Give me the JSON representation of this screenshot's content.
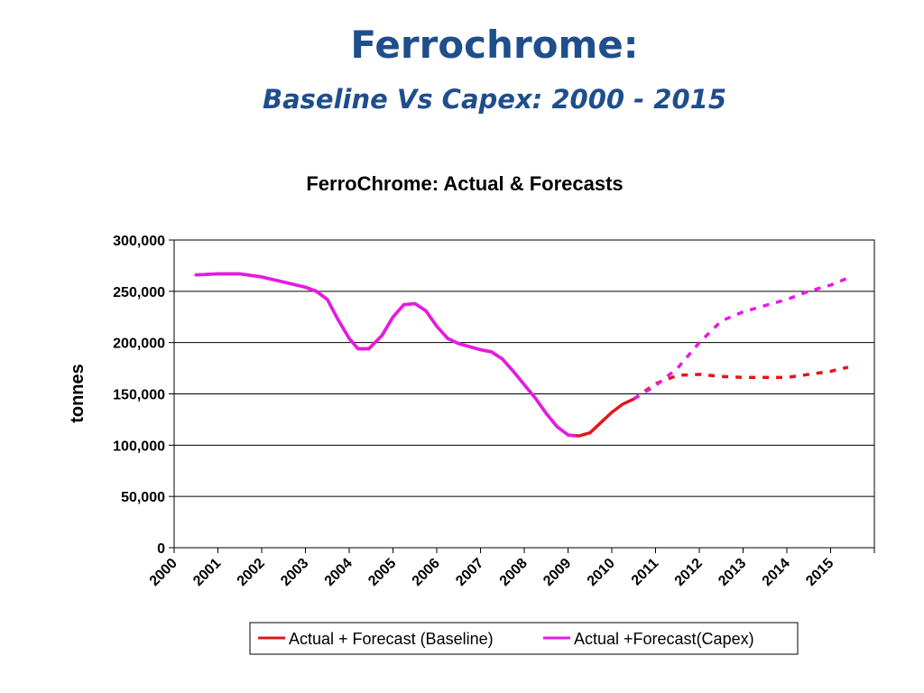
{
  "slide": {
    "title": "Ferrochrome:",
    "subtitle": "Baseline Vs Capex: 2000 - 2015"
  },
  "chart_data": {
    "type": "line",
    "title": "FerroChrome: Actual & Forecasts",
    "xlabel": "",
    "ylabel": "tonnes",
    "ylim": [
      0,
      300000
    ],
    "yticks": [
      "0",
      "50,000",
      "100,000",
      "150,000",
      "200,000",
      "250,000",
      "300,000"
    ],
    "categories": [
      "2000",
      "2001",
      "2002",
      "2003",
      "2004",
      "2005",
      "2006",
      "2007",
      "2008",
      "2009",
      "2010",
      "2011",
      "2012",
      "2013",
      "2014",
      "2015"
    ],
    "grid": true,
    "legend_position": "bottom",
    "series": [
      {
        "name": "Actual + Forecast (Baseline)",
        "color": "#E3151A",
        "actual": [
          [
            2000.5,
            266000
          ],
          [
            2001.0,
            267000
          ],
          [
            2001.5,
            267000
          ],
          [
            2002.0,
            264000
          ],
          [
            2002.5,
            259000
          ],
          [
            2003.0,
            254000
          ],
          [
            2003.25,
            250000
          ],
          [
            2003.5,
            242000
          ],
          [
            2003.75,
            222000
          ],
          [
            2004.0,
            204000
          ],
          [
            2004.2,
            194000
          ],
          [
            2004.45,
            194000
          ],
          [
            2004.75,
            207000
          ],
          [
            2005.0,
            225000
          ],
          [
            2005.25,
            237000
          ],
          [
            2005.5,
            238000
          ],
          [
            2005.75,
            231000
          ],
          [
            2006.0,
            216000
          ],
          [
            2006.25,
            204000
          ],
          [
            2006.5,
            199000
          ],
          [
            2007.0,
            193000
          ],
          [
            2007.25,
            191000
          ],
          [
            2007.5,
            184000
          ],
          [
            2007.75,
            172000
          ],
          [
            2008.0,
            159000
          ],
          [
            2008.25,
            146000
          ],
          [
            2008.5,
            131000
          ],
          [
            2008.75,
            118000
          ],
          [
            2009.0,
            110000
          ],
          [
            2009.25,
            109000
          ],
          [
            2009.5,
            112000
          ],
          [
            2009.75,
            122000
          ],
          [
            2010.0,
            132000
          ],
          [
            2010.25,
            140000
          ],
          [
            2010.5,
            145000
          ]
        ],
        "forecast": [
          [
            2010.5,
            145000
          ],
          [
            2011.0,
            160000
          ],
          [
            2011.5,
            168000
          ],
          [
            2012.0,
            169000
          ],
          [
            2012.5,
            167000
          ],
          [
            2013.0,
            166000
          ],
          [
            2013.5,
            166000
          ],
          [
            2014.0,
            166000
          ],
          [
            2014.5,
            169000
          ],
          [
            2015.0,
            172000
          ],
          [
            2015.4,
            176000
          ]
        ]
      },
      {
        "name": "Actual +Forecast(Capex)",
        "color": "#E619E6",
        "actual": [
          [
            2000.5,
            266000
          ],
          [
            2001.0,
            267000
          ],
          [
            2001.5,
            267000
          ],
          [
            2002.0,
            264000
          ],
          [
            2002.5,
            259000
          ],
          [
            2003.0,
            254000
          ],
          [
            2003.25,
            250000
          ],
          [
            2003.5,
            242000
          ],
          [
            2003.75,
            222000
          ],
          [
            2004.0,
            204000
          ],
          [
            2004.2,
            194000
          ],
          [
            2004.45,
            194000
          ],
          [
            2004.75,
            207000
          ],
          [
            2005.0,
            225000
          ],
          [
            2005.25,
            237000
          ],
          [
            2005.5,
            238000
          ],
          [
            2005.75,
            231000
          ],
          [
            2006.0,
            216000
          ],
          [
            2006.25,
            204000
          ],
          [
            2006.5,
            199000
          ],
          [
            2007.0,
            193000
          ],
          [
            2007.25,
            191000
          ],
          [
            2007.5,
            184000
          ],
          [
            2007.75,
            172000
          ],
          [
            2008.0,
            159000
          ],
          [
            2008.25,
            146000
          ],
          [
            2008.5,
            131000
          ],
          [
            2008.75,
            118000
          ],
          [
            2009.0,
            110000
          ],
          [
            2009.15,
            109000
          ]
        ],
        "forecast": [
          [
            2010.5,
            145000
          ],
          [
            2011.0,
            158000
          ],
          [
            2011.5,
            175000
          ],
          [
            2012.0,
            200000
          ],
          [
            2012.5,
            221000
          ],
          [
            2013.0,
            230000
          ],
          [
            2013.5,
            236000
          ],
          [
            2014.0,
            242000
          ],
          [
            2014.5,
            250000
          ],
          [
            2015.0,
            256000
          ],
          [
            2015.4,
            263000
          ]
        ]
      }
    ]
  }
}
